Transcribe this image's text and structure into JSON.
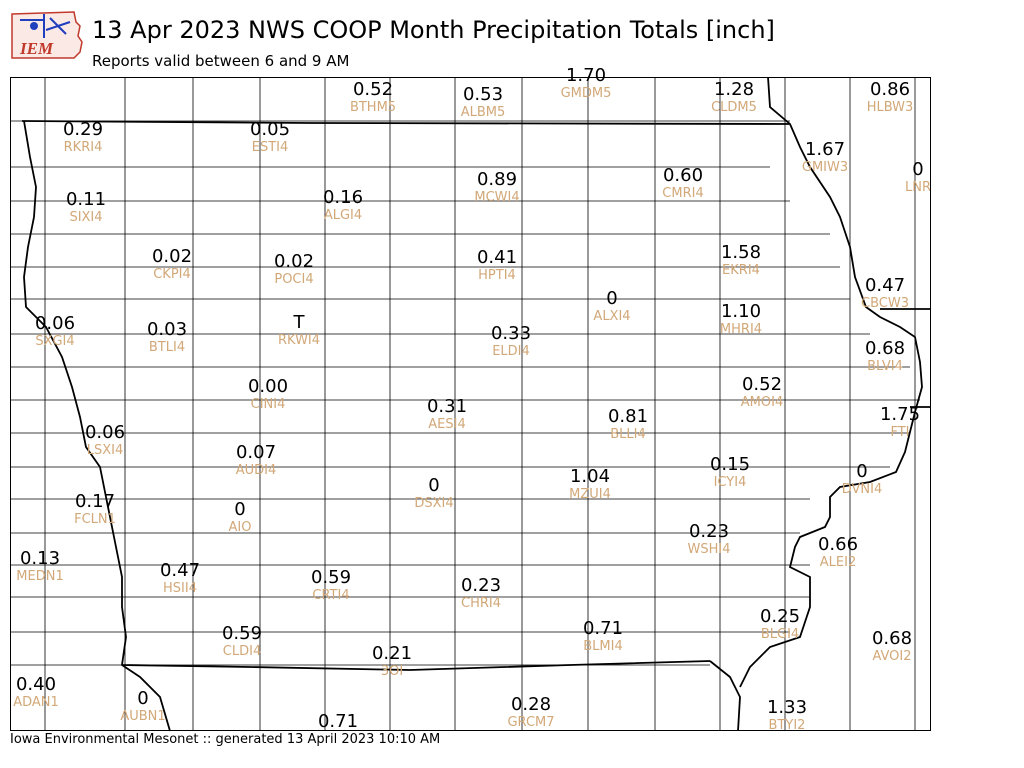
{
  "header": {
    "logo_text": "IEM",
    "title": "13 Apr 2023 NWS COOP Month Precipitation Totals [inch]",
    "subtitle": "Reports valid between 6 and 9 AM"
  },
  "footer": {
    "text": "Iowa Environmental Mesonet :: generated 13 April 2023 10:10 AM"
  },
  "colors": {
    "value_text": "#000000",
    "station_text": "#d2a878",
    "county_line": "#000000",
    "state_line": "#000000"
  },
  "stations": [
    {
      "value": "0.52",
      "id": "BTHM5"
    },
    {
      "value": "0.53",
      "id": "ALBM5"
    },
    {
      "value": "1.70",
      "id": "GMDM5"
    },
    {
      "value": "1.28",
      "id": "CLDM5"
    },
    {
      "value": "0.86",
      "id": "HLBW3"
    },
    {
      "value": "0.29",
      "id": "RKRI4"
    },
    {
      "value": "0.05",
      "id": "ESTI4"
    },
    {
      "value": "1.67",
      "id": "GMIW3"
    },
    {
      "value": "0",
      "id": "LNR"
    },
    {
      "value": "0.11",
      "id": "SIXI4"
    },
    {
      "value": "0.16",
      "id": "ALGI4"
    },
    {
      "value": "0.89",
      "id": "MCWI4"
    },
    {
      "value": "0.60",
      "id": "CMRI4"
    },
    {
      "value": "0.02",
      "id": "CKPI4"
    },
    {
      "value": "0.02",
      "id": "POCI4"
    },
    {
      "value": "0.41",
      "id": "HPTI4"
    },
    {
      "value": "1.58",
      "id": "EKRI4"
    },
    {
      "value": "0.47",
      "id": "CBCW3"
    },
    {
      "value": "0",
      "id": "ALXI4"
    },
    {
      "value": "0.06",
      "id": "SXGI4"
    },
    {
      "value": "0.03",
      "id": "BTLI4"
    },
    {
      "value": "T",
      "id": "RKWI4"
    },
    {
      "value": "0.33",
      "id": "ELDI4"
    },
    {
      "value": "1.10",
      "id": "MHRI4"
    },
    {
      "value": "0.68",
      "id": "BLVI4"
    },
    {
      "value": "0.00",
      "id": "CINI4"
    },
    {
      "value": "0.52",
      "id": "AMOI4"
    },
    {
      "value": "0.31",
      "id": "AESI4"
    },
    {
      "value": "1.75",
      "id": "FTI"
    },
    {
      "value": "0.81",
      "id": "BLLI4"
    },
    {
      "value": "0.06",
      "id": "LSXI4"
    },
    {
      "value": "0.07",
      "id": "AUDI4"
    },
    {
      "value": "0.15",
      "id": "ICYI4"
    },
    {
      "value": "0",
      "id": "DVNI4"
    },
    {
      "value": "1.04",
      "id": "MZUI4"
    },
    {
      "value": "0",
      "id": "DSXI4"
    },
    {
      "value": "0.17",
      "id": "FCLN1"
    },
    {
      "value": "0",
      "id": "AIO"
    },
    {
      "value": "0.23",
      "id": "WSHI4"
    },
    {
      "value": "0.66",
      "id": "ALEI2"
    },
    {
      "value": "0.13",
      "id": "MEDN1"
    },
    {
      "value": "0.47",
      "id": "HSII4"
    },
    {
      "value": "0.59",
      "id": "CRTI4"
    },
    {
      "value": "0.23",
      "id": "CHRI4"
    },
    {
      "value": "0.71",
      "id": "BLMI4"
    },
    {
      "value": "0.25",
      "id": "BLGI4"
    },
    {
      "value": "0.59",
      "id": "CLDI4"
    },
    {
      "value": "0.68",
      "id": "AVOI2"
    },
    {
      "value": "0.21",
      "id": "3OI"
    },
    {
      "value": "0.40",
      "id": "ADAN1"
    },
    {
      "value": "0",
      "id": "AUBN1"
    },
    {
      "value": "0.28",
      "id": "GRCM7"
    },
    {
      "value": "1.33",
      "id": "BTYI2"
    },
    {
      "value": "0.71",
      "id": ""
    }
  ]
}
